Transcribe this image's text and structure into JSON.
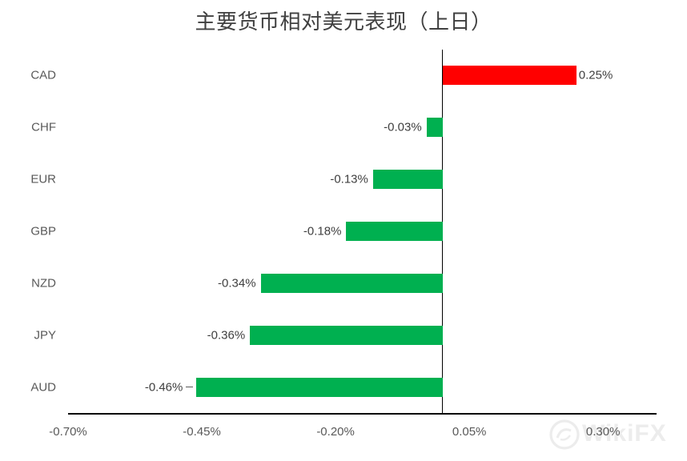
{
  "page": {
    "background": "#FFFFFF"
  },
  "watermark": {
    "text": "WikiFX",
    "logo_icon": "wikifx-ring-logo-icon",
    "color": "#ECECEC"
  },
  "chart_data": {
    "type": "bar",
    "orientation": "horizontal",
    "title": "主要货币相对美元表现（上日）",
    "categories": [
      "CAD",
      "CHF",
      "EUR",
      "GBP",
      "NZD",
      "JPY",
      "AUD"
    ],
    "values": [
      0.25,
      -0.03,
      -0.13,
      -0.18,
      -0.34,
      -0.36,
      -0.46
    ],
    "data_labels": [
      "0.25%",
      "-0.03%",
      "-0.13%",
      "-0.18%",
      "-0.34%",
      "-0.36%",
      "-0.46%"
    ],
    "x_ticks": [
      -0.7,
      -0.45,
      -0.2,
      0.05,
      0.3
    ],
    "x_tick_labels": [
      "-0.70%",
      "-0.45%",
      "-0.20%",
      "0.05%",
      "0.30%"
    ],
    "xlim": [
      -0.7,
      0.4
    ],
    "unit": "%",
    "grid": false,
    "legend": null,
    "bar_colors": {
      "positive": "#FF0000",
      "negative": "#00B050"
    },
    "axis_color": "#000000",
    "data_label_color": "#404040",
    "tick_color": "#595959",
    "leader_dash_index": 6
  }
}
